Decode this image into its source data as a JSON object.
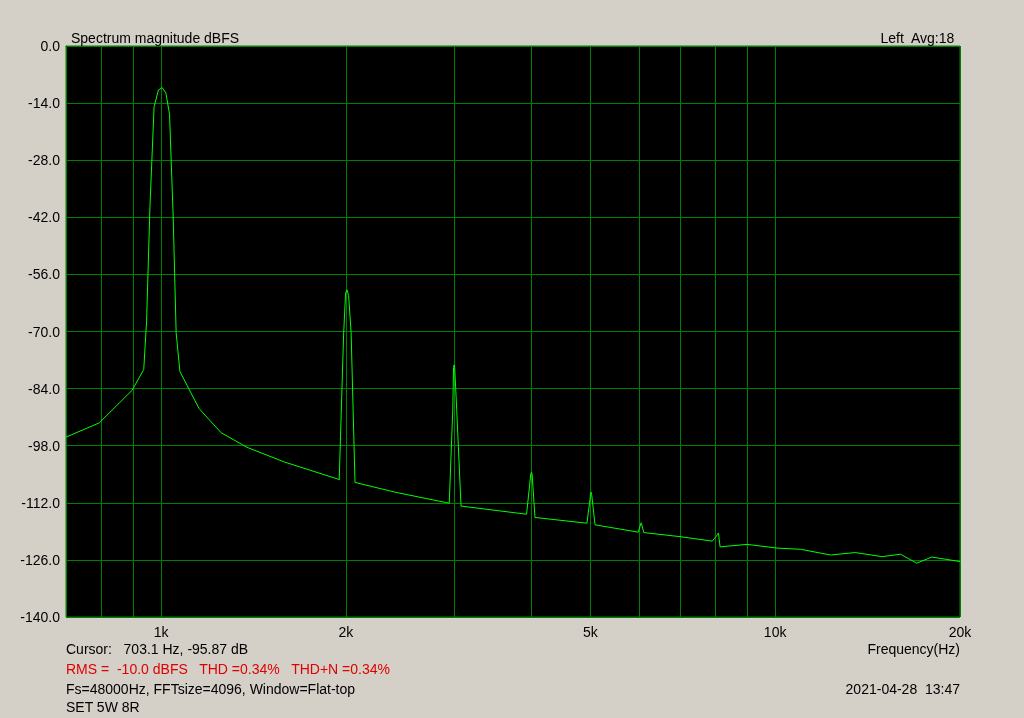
{
  "chart_data": {
    "type": "line",
    "title": "Spectrum magnitude dBFS",
    "subtitle": "Left  Avg:18",
    "xlabel": "Frequency(Hz)",
    "annotations": [
      "Cursor:   703.1 Hz, -95.87 dB",
      "RMS =  -10.0 dBFS   THD =0.34%   THD+N =0.34%",
      "Fs=48000Hz, FFTsize=4096, Window=Flat-top",
      "SET 5W 8R",
      "2021-04-28  13:47"
    ],
    "log": "x",
    "grid": true,
    "marker": "none",
    "line_style": "solid",
    "xlim": [
      700,
      20000
    ],
    "xticks": [
      {
        "value": 800,
        "label": null
      },
      {
        "value": 900,
        "label": null
      },
      {
        "value": 1000,
        "label": "1k"
      },
      {
        "value": 2000,
        "label": "2k"
      },
      {
        "value": 3000,
        "label": null
      },
      {
        "value": 4000,
        "label": null
      },
      {
        "value": 5000,
        "label": "5k"
      },
      {
        "value": 6000,
        "label": null
      },
      {
        "value": 7000,
        "label": null
      },
      {
        "value": 8000,
        "label": null
      },
      {
        "value": 9000,
        "label": null
      },
      {
        "value": 10000,
        "label": "10k"
      },
      {
        "value": 20000,
        "label": "20k"
      }
    ],
    "ylim": [
      -140,
      0
    ],
    "yticks": [
      {
        "value": -140,
        "label": "-140.0"
      },
      {
        "value": -126,
        "label": "-126.0"
      },
      {
        "value": -112,
        "label": "-112.0"
      },
      {
        "value": -98,
        "label": "-98.0"
      },
      {
        "value": -84,
        "label": "-84.0"
      },
      {
        "value": -70,
        "label": "-70.0"
      },
      {
        "value": -56,
        "label": "-56.0"
      },
      {
        "value": -42,
        "label": "-42.0"
      },
      {
        "value": -28,
        "label": "-28.0"
      },
      {
        "value": -14,
        "label": "-14.0"
      },
      {
        "value": 0,
        "label": "0.0"
      }
    ],
    "series": [
      {
        "color": "#00ff00",
        "x": [
          700,
          793,
          897,
          937,
          947,
          959,
          974,
          990,
          1004,
          1018,
          1032,
          1046,
          1058,
          1073,
          1153,
          1252,
          1380,
          1588,
          1942,
          1950,
          1982,
          1997,
          2008,
          2020,
          2039,
          2069,
          2405,
          2946,
          2985,
          2994,
          3000,
          3007,
          3030,
          3079,
          3937,
          4000,
          4010,
          4020,
          4063,
          4937,
          5008,
          5016,
          5025,
          5089,
          5984,
          6040,
          6050,
          6060,
          6110,
          7000,
          7897,
          8068,
          8078,
          8088,
          8134,
          9000,
          10070,
          11000,
          12310,
          13500,
          14940,
          16000,
          17000,
          18000,
          19990
        ],
        "values": [
          -95.9,
          -92.4,
          -84.4,
          -79.3,
          -67.4,
          -39.4,
          -14.9,
          -10.8,
          -10.2,
          -11.5,
          -16.7,
          -41.2,
          -70.3,
          -79.8,
          -88.9,
          -94.8,
          -98.4,
          -102.0,
          -106.2,
          -106.4,
          -71.1,
          -60.6,
          -59.8,
          -61.2,
          -70.3,
          -107.0,
          -109.4,
          -112.1,
          -89.3,
          -78.8,
          -78.2,
          -78.9,
          -89.3,
          -112.8,
          -114.8,
          -104.9,
          -104.5,
          -105.0,
          -115.6,
          -117.0,
          -109.8,
          -109.4,
          -109.9,
          -117.4,
          -119.2,
          -117.2,
          -116.9,
          -117.2,
          -119.3,
          -120.3,
          -121.4,
          -119.7,
          -119.4,
          -119.7,
          -122.8,
          -122.2,
          -123.1,
          -123.4,
          -124.8,
          -124.2,
          -125.2,
          -124.6,
          -126.8,
          -125.3,
          -126.4
        ]
      }
    ]
  }
}
